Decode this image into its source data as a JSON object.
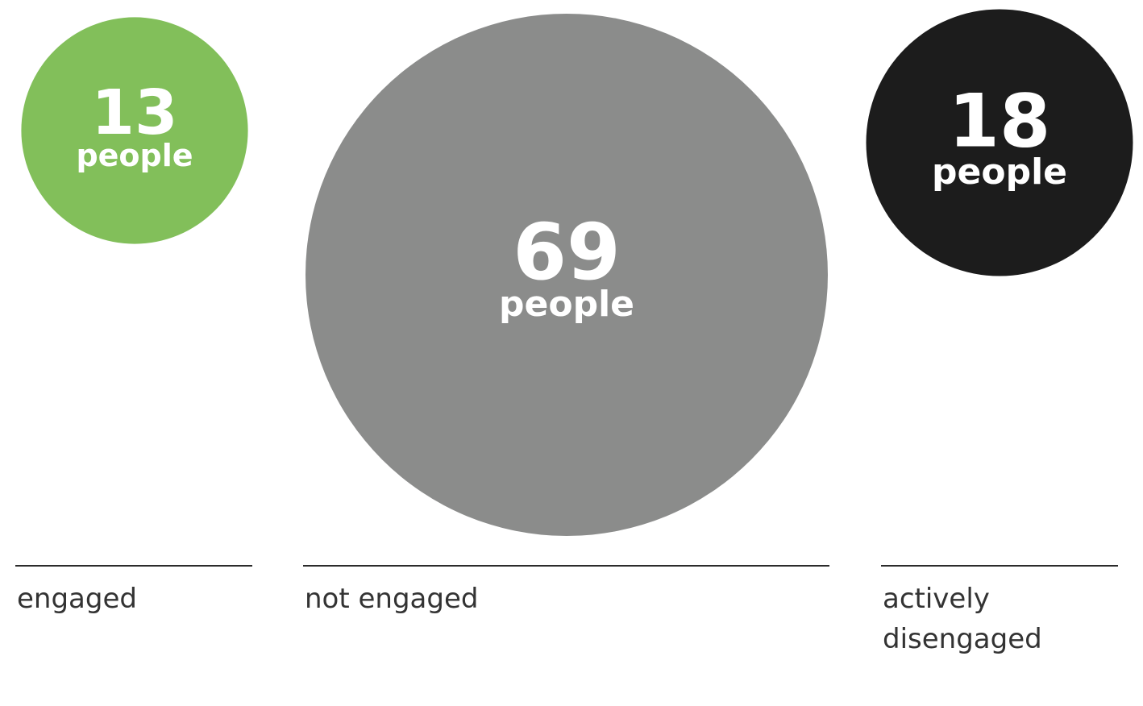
{
  "chart_data": {
    "type": "bubble",
    "unit": "people",
    "categories": [
      {
        "label_lines": [
          "engaged"
        ],
        "value": 13,
        "color": "#82bf5a"
      },
      {
        "label_lines": [
          "not engaged"
        ],
        "value": 69,
        "color": "#8b8c8b"
      },
      {
        "label_lines": [
          "actively",
          "disengaged"
        ],
        "value": 18,
        "color": "#1c1c1c"
      }
    ]
  }
}
